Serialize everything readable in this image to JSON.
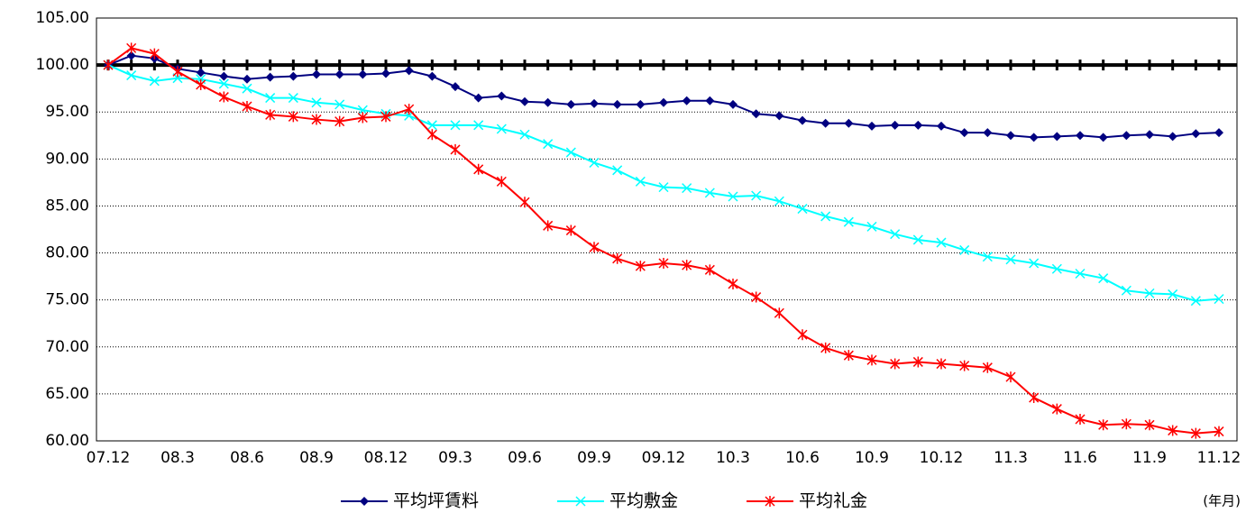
{
  "chart_data": {
    "type": "line",
    "categories": [
      "07.12",
      null,
      null,
      "08.3",
      null,
      null,
      "08.6",
      null,
      null,
      "08.9",
      null,
      null,
      "08.12",
      null,
      null,
      "09.3",
      null,
      null,
      "09.6",
      null,
      null,
      "09.9",
      null,
      null,
      "09.12",
      null,
      null,
      "10.3",
      null,
      null,
      "10.6",
      null,
      null,
      "10.9",
      null,
      null,
      "10.12",
      null,
      null,
      "11.3",
      null,
      null,
      "11.6",
      null,
      null,
      "11.9",
      null,
      null,
      "11.12"
    ],
    "x_label": "(年月)",
    "series": [
      {
        "name": "平均坪賃料",
        "color": "#000080",
        "marker": "diamond",
        "values": [
          100,
          101.0,
          100.7,
          99.6,
          99.2,
          98.8,
          98.5,
          98.7,
          98.8,
          99.0,
          99.0,
          99.0,
          99.1,
          99.4,
          98.8,
          97.7,
          96.5,
          96.7,
          96.1,
          96.0,
          95.8,
          95.9,
          95.8,
          95.8,
          96.0,
          96.2,
          96.2,
          95.8,
          94.8,
          94.6,
          94.1,
          93.8,
          93.8,
          93.5,
          93.6,
          93.6,
          93.5,
          92.8,
          92.8,
          92.5,
          92.3,
          92.4,
          92.5,
          92.3,
          92.5,
          92.6,
          92.4,
          92.7,
          92.8
        ]
      },
      {
        "name": "平均敷金",
        "color": "#00ffff",
        "marker": "x",
        "values": [
          100,
          98.9,
          98.3,
          98.6,
          98.5,
          98.0,
          97.5,
          96.5,
          96.5,
          96.0,
          95.8,
          95.2,
          94.8,
          94.6,
          93.6,
          93.6,
          93.6,
          93.2,
          92.6,
          91.6,
          90.7,
          89.6,
          88.8,
          87.6,
          87.0,
          86.9,
          86.4,
          86.0,
          86.1,
          85.5,
          84.7,
          83.9,
          83.3,
          82.8,
          82.0,
          81.4,
          81.1,
          80.3,
          79.6,
          79.3,
          78.9,
          78.3,
          77.8,
          77.3,
          76.0,
          75.7,
          75.6,
          74.9,
          75.1
        ]
      },
      {
        "name": "平均礼金",
        "color": "#ff0000",
        "marker": "asterisk",
        "values": [
          100,
          101.8,
          101.2,
          99.3,
          97.9,
          96.6,
          95.6,
          94.7,
          94.5,
          94.2,
          94.0,
          94.4,
          94.5,
          95.3,
          92.6,
          91.0,
          88.9,
          87.6,
          85.4,
          82.9,
          82.4,
          80.6,
          79.4,
          78.6,
          78.9,
          78.7,
          78.2,
          76.7,
          75.3,
          73.6,
          71.3,
          69.9,
          69.1,
          68.6,
          68.2,
          68.4,
          68.2,
          68.0,
          67.8,
          66.8,
          64.6,
          63.4,
          62.3,
          61.7,
          61.8,
          61.7,
          61.1,
          60.8,
          61.0
        ]
      }
    ],
    "reference_line": {
      "value": 100,
      "color": "#000000"
    },
    "ylim": [
      60,
      105
    ],
    "yticks": [
      {
        "value": 60,
        "label": "60.00"
      },
      {
        "value": 65,
        "label": "65.00"
      },
      {
        "value": 70,
        "label": "70.00"
      },
      {
        "value": 75,
        "label": "75.00"
      },
      {
        "value": 80,
        "label": "80.00"
      },
      {
        "value": 85,
        "label": "85.00"
      },
      {
        "value": 90,
        "label": "90.00"
      },
      {
        "value": 95,
        "label": "95.00"
      },
      {
        "value": 100,
        "label": "100.00"
      },
      {
        "value": 105,
        "label": "105.00"
      }
    ],
    "grid": true,
    "legend": "bottom"
  }
}
